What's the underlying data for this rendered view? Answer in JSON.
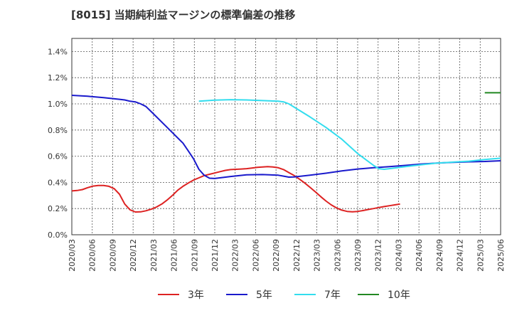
{
  "title": "[8015]  当期純利益マージンの標準偏差の推移",
  "chart_data": {
    "type": "line",
    "title": "[8015]  当期純利益マージンの標準偏差の推移",
    "xlabel": "",
    "ylabel": "",
    "ylim": [
      0.0,
      1.5
    ],
    "y_ticks": [
      0.0,
      0.2,
      0.4,
      0.6,
      0.8,
      1.0,
      1.2,
      1.4
    ],
    "y_tick_labels": [
      "0.0%",
      "0.2%",
      "0.4%",
      "0.6%",
      "0.8%",
      "1.0%",
      "1.2%",
      "1.4%"
    ],
    "x_ticks": [
      "2020/03",
      "2020/06",
      "2020/09",
      "2020/12",
      "2021/03",
      "2021/06",
      "2021/09",
      "2021/12",
      "2022/03",
      "2022/06",
      "2022/09",
      "2022/12",
      "2023/03",
      "2023/06",
      "2023/09",
      "2023/12",
      "2024/03",
      "2024/06",
      "2024/09",
      "2024/12",
      "2025/03",
      "2025/06"
    ],
    "grid": true,
    "legend_position": "bottom",
    "series": [
      {
        "name": "3年",
        "color": "#dd2222",
        "points": [
          [
            "2020/03",
            0.335
          ],
          [
            "2020/04",
            0.338
          ],
          [
            "2020/05",
            0.345
          ],
          [
            "2020/06",
            0.36
          ],
          [
            "2020/07",
            0.372
          ],
          [
            "2020/08",
            0.376
          ],
          [
            "2020/09",
            0.376
          ],
          [
            "2020/10",
            0.37
          ],
          [
            "2020/11",
            0.352
          ],
          [
            "2020/12",
            0.31
          ],
          [
            "2021/01",
            0.235
          ],
          [
            "2021/02",
            0.19
          ],
          [
            "2021/03",
            0.174
          ],
          [
            "2021/04",
            0.175
          ],
          [
            "2021/05",
            0.183
          ],
          [
            "2021/06",
            0.195
          ],
          [
            "2021/07",
            0.212
          ],
          [
            "2021/08",
            0.235
          ],
          [
            "2021/09",
            0.265
          ],
          [
            "2021/10",
            0.3
          ],
          [
            "2021/11",
            0.34
          ],
          [
            "2021/12",
            0.37
          ],
          [
            "2022/01",
            0.395
          ],
          [
            "2022/02",
            0.418
          ],
          [
            "2022/03",
            0.435
          ],
          [
            "2022/04",
            0.452
          ],
          [
            "2022/05",
            0.462
          ],
          [
            "2022/06",
            0.472
          ],
          [
            "2022/07",
            0.482
          ],
          [
            "2022/08",
            0.492
          ],
          [
            "2022/09",
            0.498
          ],
          [
            "2022/10",
            0.5
          ],
          [
            "2022/11",
            0.502
          ],
          [
            "2022/12",
            0.505
          ],
          [
            "2023/01",
            0.51
          ],
          [
            "2023/02",
            0.515
          ],
          [
            "2023/03",
            0.518
          ],
          [
            "2023/04",
            0.52
          ],
          [
            "2023/05",
            0.518
          ],
          [
            "2023/06",
            0.512
          ],
          [
            "2023/07",
            0.498
          ],
          [
            "2023/08",
            0.475
          ],
          [
            "2023/09",
            0.452
          ],
          [
            "2023/10",
            0.425
          ],
          [
            "2023/11",
            0.395
          ],
          [
            "2023/12",
            0.362
          ],
          [
            "2024/01",
            0.328
          ],
          [
            "2024/02",
            0.292
          ],
          [
            "2024/03",
            0.258
          ],
          [
            "2024/04",
            0.228
          ],
          [
            "2024/05",
            0.205
          ],
          [
            "2024/06",
            0.188
          ],
          [
            "2024/07",
            0.178
          ],
          [
            "2024/08",
            0.175
          ],
          [
            "2024/09",
            0.178
          ],
          [
            "2024/10",
            0.185
          ],
          [
            "2024/11",
            0.193
          ],
          [
            "2024/12",
            0.2
          ],
          [
            "2025/01",
            0.208
          ],
          [
            "2025/02",
            0.215
          ],
          [
            "2025/03",
            0.222
          ],
          [
            "2025/04",
            0.228
          ],
          [
            "2025/05",
            0.235
          ]
        ]
      },
      {
        "name": "5年",
        "color": "#1a1acc",
        "points": [
          [
            "2020/03",
            1.065
          ],
          [
            "2020/06",
            1.058
          ],
          [
            "2020/09",
            1.048
          ],
          [
            "2020/12",
            1.035
          ],
          [
            "2021/01",
            1.03
          ],
          [
            "2021/02",
            1.02
          ],
          [
            "2021/03",
            1.015
          ],
          [
            "2021/04",
            1.0
          ],
          [
            "2021/05",
            0.98
          ],
          [
            "2021/06",
            0.94
          ],
          [
            "2021/09",
            0.82
          ],
          [
            "2021/12",
            0.7
          ],
          [
            "2022/01",
            0.64
          ],
          [
            "2022/02",
            0.58
          ],
          [
            "2022/03",
            0.5
          ],
          [
            "2022/04",
            0.455
          ],
          [
            "2022/05",
            0.432
          ],
          [
            "2022/06",
            0.43
          ],
          [
            "2022/09",
            0.445
          ],
          [
            "2022/12",
            0.458
          ],
          [
            "2023/03",
            0.46
          ],
          [
            "2023/06",
            0.455
          ],
          [
            "2023/07",
            0.448
          ],
          [
            "2023/08",
            0.44
          ],
          [
            "2023/09",
            0.442
          ],
          [
            "2023/12",
            0.455
          ],
          [
            "2024/03",
            0.47
          ],
          [
            "2024/06",
            0.488
          ],
          [
            "2024/09",
            0.502
          ],
          [
            "2024/12",
            0.512
          ],
          [
            "2025/03",
            0.52
          ],
          [
            "2025/06",
            0.53
          ],
          [
            "2025/09",
            0.54
          ],
          [
            "2025/12",
            0.548
          ],
          [
            "2026/03",
            0.553
          ],
          [
            "2026/06",
            0.557
          ],
          [
            "2026/09",
            0.56
          ],
          [
            "2026/12",
            0.565
          ]
        ]
      },
      {
        "name": "7年",
        "color": "#33ddee",
        "points": [
          [
            "2022/03",
            1.02
          ],
          [
            "2022/06",
            1.028
          ],
          [
            "2022/09",
            1.032
          ],
          [
            "2022/12",
            1.03
          ],
          [
            "2023/03",
            1.025
          ],
          [
            "2023/06",
            1.02
          ],
          [
            "2023/07",
            1.015
          ],
          [
            "2023/08",
            1.0
          ],
          [
            "2023/09",
            0.975
          ],
          [
            "2023/12",
            0.9
          ],
          [
            "2024/03",
            0.82
          ],
          [
            "2024/06",
            0.73
          ],
          [
            "2024/09",
            0.62
          ],
          [
            "2024/12",
            0.53
          ],
          [
            "2025/01",
            0.505
          ],
          [
            "2025/02",
            0.5
          ],
          [
            "2025/03",
            0.505
          ],
          [
            "2025/06",
            0.52
          ],
          [
            "2025/09",
            0.535
          ],
          [
            "2025/12",
            0.548
          ],
          [
            "2026/03",
            0.555
          ],
          [
            "2026/06",
            0.562
          ],
          [
            "2026/09",
            0.575
          ],
          [
            "2026/12",
            0.585
          ]
        ]
      },
      {
        "name": "10年",
        "color": "#228822",
        "points": [
          [
            "2026/09",
            1.085
          ],
          [
            "2026/12",
            1.085
          ]
        ]
      }
    ]
  }
}
